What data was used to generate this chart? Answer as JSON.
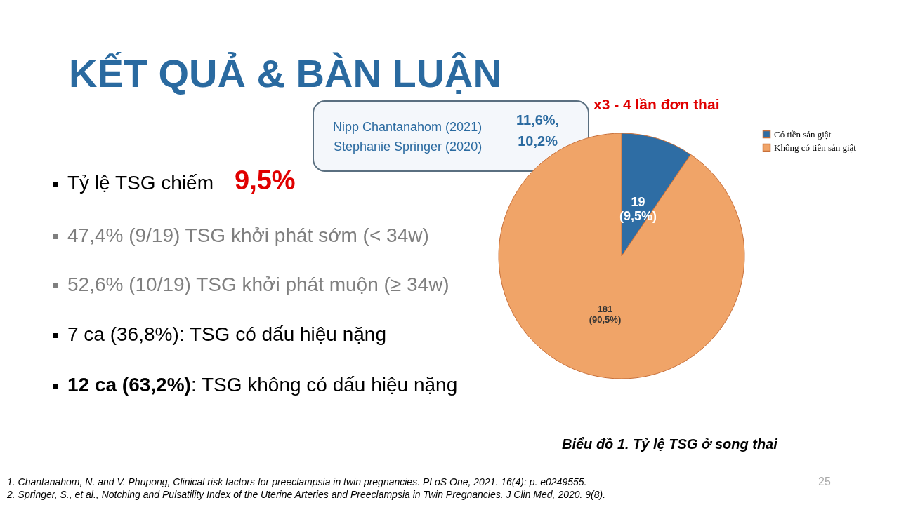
{
  "chart_data": {
    "type": "pie",
    "title": "KẾT QUẢ & BÀN LUẬN",
    "categories": [
      "Có tiền sản giật",
      "Không có tiền sản giật"
    ],
    "values": [
      19,
      181
    ],
    "colors": [
      "#2e6da4",
      "#f0a468"
    ],
    "value_labels": [
      "19 (9,5%)",
      "181 (90,5%)"
    ],
    "legend": "right",
    "annotations": [
      "x3 - 4 lần đơn thai",
      "Nipp Chantanahom (2021)\nStephanie Springer (2020)",
      "11,6%,\n10,2%",
      "Tỷ lệ TSG chiếm",
      "9,5%",
      "47,4% (9/19) TSG khởi phát sớm (< 34w)",
      "52,6% (10/19) TSG khởi phát muộn (≥ 34w)",
      "7 ca (36,8%): TSG có dấu hiệu nặng",
      "12 ca (63,2%): TSG không có dấu hiệu nặng",
      "Biểu đồ 1. Tỷ lệ TSG ở song thai",
      "1. Chantanahom, N. and V. Phupong, Clinical risk factors for preeclampsia in twin pregnancies. PLoS One, 2021. 16(4): p. e0249555.",
      "2. Springer, S., et al., Notching and Pulsatility Index of the Uterine Arteries and Preeclampsia in Twin Pregnancies. J Clin Med, 2020. 9(8).",
      "25"
    ]
  }
}
